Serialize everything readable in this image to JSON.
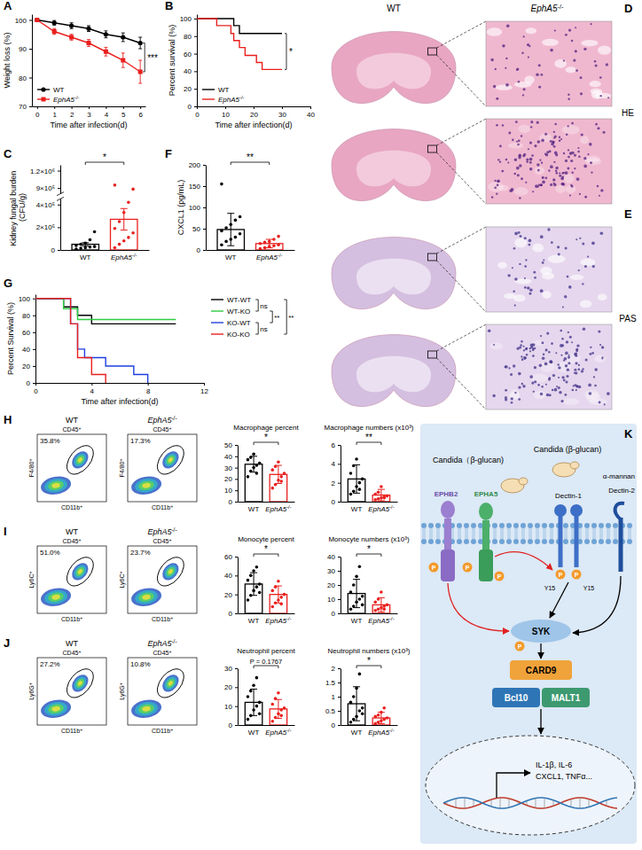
{
  "chart_data": [
    {
      "panel": "A",
      "type": "line",
      "x_label": "Time after infection(d)",
      "y_label": "Weight loss (%)",
      "x": [
        0,
        1,
        2,
        3,
        4,
        5,
        6
      ],
      "xlim": [
        -0.3,
        6.3
      ],
      "xticks": [
        0,
        1,
        2,
        3,
        4,
        5,
        6
      ],
      "ylim": [
        70,
        102
      ],
      "yticks": [
        70,
        80,
        90,
        100
      ],
      "legend": "lower-left",
      "series": [
        {
          "name": "WT",
          "color": "#000000",
          "marker": "circle",
          "values": [
            100,
            99,
            98,
            97,
            95,
            94,
            92
          ],
          "errors": [
            0,
            0.8,
            1,
            1,
            1.2,
            1.5,
            2
          ]
        },
        {
          "name": "EphA5-/-",
          "color": "#e8201e",
          "marker": "square",
          "values": [
            100,
            96,
            94,
            92,
            89,
            86,
            82
          ],
          "errors": [
            0,
            1,
            1,
            1.2,
            1.5,
            2.5,
            4
          ]
        }
      ],
      "annotations": [
        "***"
      ]
    },
    {
      "panel": "B",
      "type": "step",
      "x_label": "Time after infection(d)",
      "y_label": "Percent survival (%)",
      "xlim": [
        0,
        40
      ],
      "xticks": [
        0,
        10,
        20,
        30,
        40
      ],
      "ylim": [
        0,
        105
      ],
      "yticks": [
        0,
        20,
        40,
        60,
        80,
        100
      ],
      "legend": "lower-left",
      "series": [
        {
          "name": "WT",
          "color": "#000000",
          "x": [
            0,
            13,
            15,
            30
          ],
          "values": [
            100,
            92,
            83,
            83
          ]
        },
        {
          "name": "EphA5-/-",
          "color": "#e8201e",
          "x": [
            0,
            7,
            12,
            13,
            15,
            17,
            21,
            23,
            30
          ],
          "values": [
            100,
            92,
            83,
            75,
            67,
            58,
            50,
            42,
            42
          ]
        }
      ],
      "annotations": [
        "*"
      ]
    },
    {
      "panel": "C",
      "type": "bar",
      "y_label": "Kidney fungal burden (CFU/g)",
      "categories": [
        "WT",
        "EphA5-/-"
      ],
      "values": [
        50000,
        270000
      ],
      "errors": [
        14000,
        95000
      ],
      "points": [
        [
          8000,
          15000,
          20000,
          25000,
          30000,
          40000,
          50000,
          60000,
          90000,
          160000
        ],
        [
          20000,
          50000,
          80000,
          110000,
          150000,
          190000,
          250000,
          330000,
          420000,
          880000,
          950000
        ]
      ],
      "colors": [
        "#000000",
        "#e8201e"
      ],
      "ylim": [
        0,
        1300000
      ],
      "axis_break": [
        450000,
        800000
      ],
      "yticks": [
        0,
        {
          "value": 200000,
          "label": "2×10⁵"
        },
        {
          "value": 400000,
          "label": "4×10⁵"
        },
        {
          "value": 900000,
          "label": "9×10⁵"
        },
        {
          "value": 1200000,
          "label": "1.2×10⁶"
        }
      ],
      "annotations": [
        "*"
      ]
    },
    {
      "panel": "F",
      "type": "bar",
      "y_label": "CXCL1 (pg/mL)",
      "categories": [
        "WT",
        "EphA5-/-"
      ],
      "values": [
        48,
        15
      ],
      "errors": [
        38,
        10
      ],
      "points": [
        [
          12,
          20,
          25,
          30,
          38,
          45,
          52,
          60,
          70,
          78,
          155
        ],
        [
          3,
          5,
          8,
          10,
          12,
          15,
          18,
          20,
          25,
          32
        ]
      ],
      "colors": [
        "#000000",
        "#e8201e"
      ],
      "ylim": [
        0,
        200
      ],
      "yticks": [
        0,
        50,
        100,
        150,
        200
      ],
      "annotations": [
        "**"
      ]
    },
    {
      "panel": "G",
      "type": "step",
      "x_label": "Time after infection(d)",
      "y_label": "Percent Survival (%)",
      "xlim": [
        0,
        12
      ],
      "xticks": [
        0,
        4,
        8,
        12
      ],
      "ylim": [
        0,
        105
      ],
      "yticks": [
        0,
        20,
        40,
        60,
        80,
        100
      ],
      "legend": "right",
      "series": [
        {
          "name": "WT-WT",
          "color": "#000000",
          "x": [
            0,
            2,
            3,
            4,
            10
          ],
          "values": [
            100,
            90,
            80,
            70,
            70
          ]
        },
        {
          "name": "WT-KO",
          "color": "#2ecc40",
          "x": [
            0,
            2,
            3,
            10
          ],
          "values": [
            100,
            88,
            75,
            75
          ]
        },
        {
          "name": "KO-WT",
          "color": "#1f3fe0",
          "x": [
            0,
            2.5,
            3,
            3.5,
            5,
            7,
            8
          ],
          "values": [
            100,
            70,
            40,
            30,
            20,
            10,
            0
          ]
        },
        {
          "name": "KO-KO",
          "color": "#e8201e",
          "x": [
            0,
            2.5,
            3,
            4,
            5
          ],
          "values": [
            100,
            70,
            30,
            10,
            0
          ]
        }
      ],
      "annotations": [
        {
          "text": "ns",
          "between": [
            "WT-WT",
            "WT-KO"
          ]
        },
        {
          "text": "**",
          "between": [
            "WT-KO",
            "KO-WT"
          ]
        },
        {
          "text": "ns",
          "between": [
            "KO-WT",
            "KO-KO"
          ]
        },
        {
          "text": "**",
          "between": [
            "WT-WT",
            "KO-KO"
          ]
        }
      ]
    },
    {
      "type": "bar",
      "title": "Macrophage percent",
      "categories": [
        "WT",
        "EphA5-/-"
      ],
      "values": [
        33,
        24
      ],
      "errors": [
        7,
        8
      ],
      "points": [
        [
          22,
          27,
          30,
          32,
          34,
          37,
          39,
          42,
          25
        ],
        [
          12,
          15,
          19,
          22,
          25,
          28,
          31,
          35,
          18
        ]
      ],
      "colors": [
        "#000000",
        "#e8201e"
      ],
      "ylim": [
        0,
        50
      ],
      "yticks": [
        0,
        10,
        20,
        30,
        40,
        50
      ],
      "annotations": [
        "*"
      ]
    },
    {
      "type": "bar",
      "title": "Macrophage numbers (x10³)",
      "categories": [
        "WT",
        "EphA5-/-"
      ],
      "values": [
        2.4,
        0.7
      ],
      "errors": [
        1.5,
        0.6
      ],
      "points": [
        [
          0.8,
          1.1,
          1.6,
          2.0,
          2.4,
          3.0,
          3.8,
          4.5,
          1.3
        ],
        [
          0.2,
          0.3,
          0.4,
          0.5,
          0.6,
          0.8,
          1.0,
          1.6,
          0.4
        ]
      ],
      "colors": [
        "#000000",
        "#e8201e"
      ],
      "ylim": [
        0,
        6
      ],
      "yticks": [
        0,
        2,
        4,
        6
      ],
      "annotations": [
        "**"
      ]
    },
    {
      "type": "bar",
      "title": "Monocyte percent",
      "categories": [
        "WT",
        "EphA5-/-"
      ],
      "values": [
        31,
        20
      ],
      "errors": [
        12,
        9
      ],
      "points": [
        [
          14,
          19,
          24,
          28,
          31,
          35,
          40,
          45,
          49,
          22
        ],
        [
          7,
          11,
          14,
          17,
          20,
          24,
          28,
          34,
          10
        ]
      ],
      "colors": [
        "#000000",
        "#e8201e"
      ],
      "ylim": [
        0,
        60
      ],
      "yticks": [
        0,
        20,
        40,
        60
      ],
      "annotations": [
        "*"
      ]
    },
    {
      "type": "bar",
      "title": "Monocyte numbers (x10³)",
      "categories": [
        "WT",
        "EphA5-/-"
      ],
      "values": [
        14,
        6
      ],
      "errors": [
        10,
        5
      ],
      "points": [
        [
          3,
          5,
          8,
          10,
          12,
          15,
          20,
          26,
          33,
          6
        ],
        [
          2,
          3,
          4,
          5,
          6,
          8,
          10,
          15,
          3
        ]
      ],
      "colors": [
        "#000000",
        "#e8201e"
      ],
      "ylim": [
        0,
        40
      ],
      "yticks": [
        0,
        10,
        20,
        30,
        40
      ],
      "annotations": [
        "*"
      ]
    },
    {
      "type": "bar",
      "title": "Neutrophil percent",
      "categories": [
        "WT",
        "EphA5-/-"
      ],
      "values": [
        12,
        8.5
      ],
      "errors": [
        7,
        5
      ],
      "points": [
        [
          3,
          5,
          8,
          10,
          12,
          15,
          18,
          21,
          25,
          6
        ],
        [
          2,
          4,
          6,
          8,
          9,
          11,
          14,
          17,
          5
        ]
      ],
      "colors": [
        "#000000",
        "#e8201e"
      ],
      "ylim": [
        0,
        30
      ],
      "yticks": [
        0,
        10,
        20,
        30
      ],
      "annotations": [
        "P = 0.1767"
      ]
    },
    {
      "type": "bar",
      "title": "Neutrophil numbers (x10³)",
      "categories": [
        "WT",
        "EphA5-/-"
      ],
      "values": [
        0.75,
        0.25
      ],
      "errors": [
        0.6,
        0.2
      ],
      "points": [
        [
          0.1,
          0.2,
          0.3,
          0.5,
          0.6,
          0.8,
          1.0,
          1.3,
          1.8,
          0.4
        ],
        [
          0.05,
          0.1,
          0.15,
          0.2,
          0.25,
          0.3,
          0.35,
          0.45,
          0.6
        ]
      ],
      "colors": [
        "#000000",
        "#e8201e"
      ],
      "ylim": [
        0,
        2
      ],
      "yticks": [
        0,
        0.5,
        1,
        1.5,
        2
      ],
      "annotations": [
        "*"
      ]
    }
  ],
  "histology": {
    "panels": [
      "D",
      "E"
    ],
    "columns": [
      "WT",
      "EphA5-/-"
    ],
    "stains": [
      "HE",
      "PAS"
    ]
  },
  "flow": [
    {
      "panel": "H",
      "gate_parent": "CD45+",
      "x_label": "CD11b+",
      "y_label": "F4/80+",
      "groups": [
        {
          "label": "WT",
          "gate_percent": "35.8%"
        },
        {
          "label": "EphA5-/-",
          "gate_percent": "17.3%"
        }
      ]
    },
    {
      "panel": "I",
      "gate_parent": "CD45+",
      "x_label": "CD11b+",
      "y_label": "Ly6C+",
      "groups": [
        {
          "label": "WT",
          "gate_percent": "51.0%"
        },
        {
          "label": "EphA5-/-",
          "gate_percent": "23.7%"
        }
      ]
    },
    {
      "panel": "J",
      "gate_parent": "CD45+",
      "x_label": "CD11b+",
      "y_label": "Ly6G+",
      "groups": [
        {
          "label": "WT",
          "gate_percent": "27.2%"
        },
        {
          "label": "EphA5-/-",
          "gate_percent": "10.8%"
        }
      ]
    }
  ],
  "diagram": {
    "panel": "K",
    "ligands": [
      "Candida（β-glucan)",
      "Candida (β-glucan)"
    ],
    "receptors": [
      "EPHB2",
      "EPHA5",
      "Dectin-1",
      "Dectin-2"
    ],
    "mannan": "α-mannan",
    "phospho": "P",
    "residue": "Y15",
    "kinase": "SYK",
    "adaptor": "CARD9",
    "complex": [
      "Bcl10",
      "MALT1"
    ],
    "genes": [
      "IL-1β, IL-6",
      "CXCL1, TNFα..."
    ]
  }
}
